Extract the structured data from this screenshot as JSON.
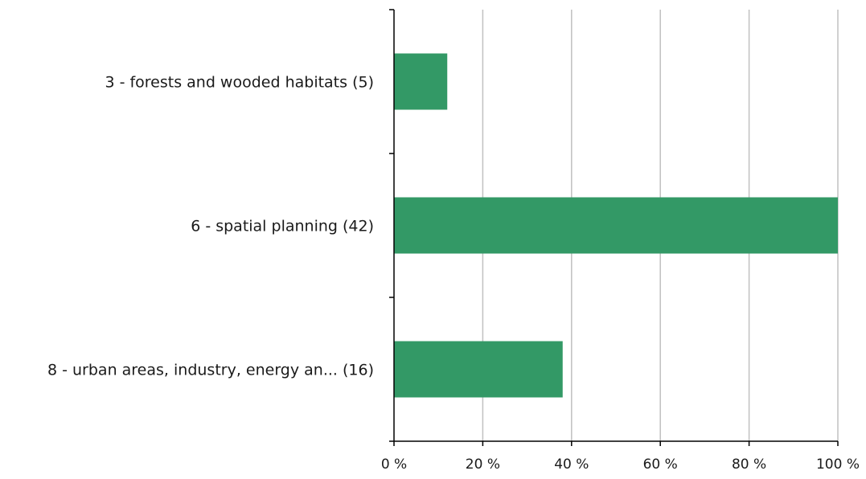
{
  "chart_data": {
    "type": "bar",
    "orientation": "horizontal",
    "categories": [
      "3 - forests and wooded habitats  (5)",
      "6 - spatial  planning  (42)",
      "8 - urban areas, industry, energy an... (16)"
    ],
    "values": [
      12,
      100,
      38
    ],
    "x_ticks": [
      "0 %",
      "20 %",
      "40 %",
      "60 %",
      "80 %",
      "100 %"
    ],
    "xlim": [
      0,
      100
    ],
    "xlabel": "",
    "ylabel": "",
    "title": "",
    "grid": "vertical",
    "bar_color": "#339966"
  }
}
